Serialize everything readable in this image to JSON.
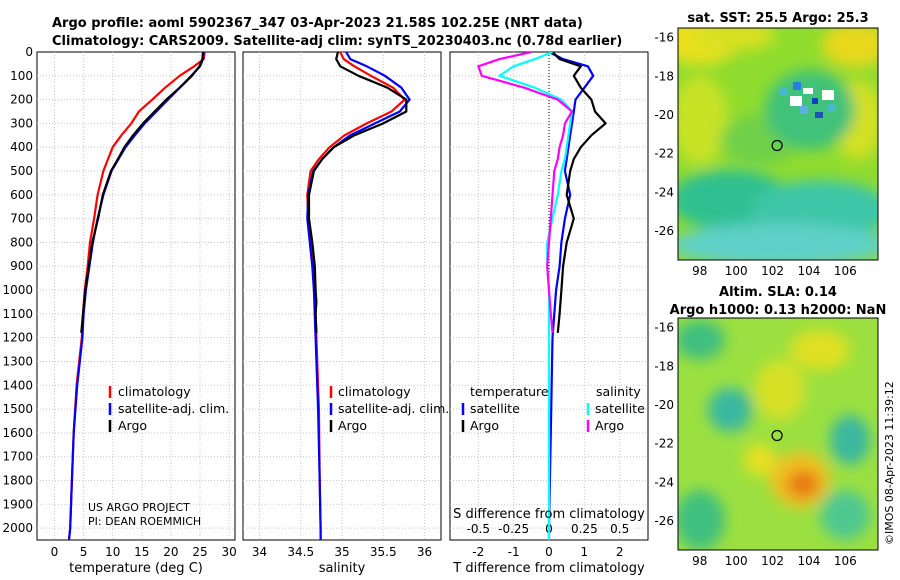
{
  "figure": {
    "title_line1": "Argo profile: aoml 5902367_347 03-Apr-2023 21.58S 102.25E (NRT data)",
    "title_line2": "Climatology: CARS2009. Satellite-adj clim: synTS_20230403.nc (0.78d earlier)",
    "credit_line1": "US ARGO PROJECT",
    "credit_line2": "PI: DEAN ROEMMICH",
    "timestamp": "©IMOS 08-Apr-2023 11:39:12"
  },
  "colors": {
    "climatology": "#ff0000",
    "satellite_adj": "#0000ff",
    "argo": "#000000",
    "salinity_satellite": "#00ffff",
    "salinity_argo": "#ff00ff"
  },
  "chart_data": [
    {
      "type": "line",
      "panel": "temperature",
      "xlabel": "temperature (deg C)",
      "xlim": [
        -3,
        31
      ],
      "xticks": [
        0,
        5,
        10,
        15,
        20,
        25,
        30
      ],
      "ylim": [
        2050,
        0
      ],
      "yticks": [
        0,
        100,
        200,
        300,
        400,
        500,
        600,
        700,
        800,
        900,
        1000,
        1100,
        1200,
        1300,
        1400,
        1500,
        1600,
        1700,
        1800,
        1900,
        2000
      ],
      "grid": true,
      "legend": [
        "climatology",
        "satellite-adj. clim.",
        "Argo"
      ],
      "series": [
        {
          "name": "climatology",
          "color": "#ff0000",
          "x": [
            25.8,
            25.6,
            24,
            21.5,
            19,
            16.8,
            14.5,
            13.2,
            11.5,
            10,
            9.2,
            8.4,
            7.4,
            6.8,
            6.1,
            5.7,
            5.2,
            4.9,
            4.7,
            3.8,
            3.3,
            3,
            2.7,
            2.5
          ],
          "y": [
            0,
            30,
            60,
            100,
            150,
            200,
            250,
            300,
            350,
            400,
            450,
            500,
            600,
            700,
            800,
            900,
            1000,
            1100,
            1200,
            1400,
            1600,
            1800,
            2000,
            2050
          ]
        },
        {
          "name": "satellite-adj. clim.",
          "color": "#0000ff",
          "x": [
            25.6,
            25.5,
            25,
            23.5,
            21.5,
            19.5,
            17.5,
            15.5,
            13.8,
            12.2,
            11,
            9.8,
            8.4,
            7.4,
            6.6,
            6,
            5.4,
            5,
            4.8,
            3.9,
            3.3,
            3,
            2.7,
            2.5
          ],
          "y": [
            0,
            30,
            60,
            100,
            150,
            200,
            250,
            300,
            350,
            400,
            450,
            500,
            600,
            700,
            800,
            900,
            1000,
            1100,
            1200,
            1400,
            1600,
            1800,
            2000,
            2050
          ]
        },
        {
          "name": "Argo",
          "color": "#000000",
          "x": [
            25.5,
            25.4,
            24.9,
            23.6,
            21.5,
            19.2,
            17.2,
            15.2,
            13.5,
            12,
            10.9,
            9.7,
            8.3,
            7.5,
            6.5,
            5.9,
            5.3,
            4.9,
            4.6
          ],
          "y": [
            0,
            30,
            60,
            100,
            150,
            200,
            250,
            300,
            350,
            400,
            450,
            500,
            600,
            700,
            800,
            900,
            1000,
            1100,
            1180
          ]
        }
      ]
    },
    {
      "type": "line",
      "panel": "salinity",
      "xlabel": "salinity",
      "xlim": [
        33.8,
        36.2
      ],
      "xticks": [
        34,
        34.5,
        35,
        35.5,
        36
      ],
      "xticklabels": [
        "34",
        "34.5",
        "35",
        "35.5",
        "36"
      ],
      "ylim": [
        2050,
        0
      ],
      "grid": true,
      "legend": [
        "climatology",
        "satellite-adj. clim.",
        "Argo"
      ],
      "series": [
        {
          "name": "climatology",
          "color": "#ff0000",
          "x": [
            34.98,
            35.02,
            35.15,
            35.35,
            35.62,
            35.76,
            35.6,
            35.3,
            35.03,
            34.85,
            34.72,
            34.62,
            34.58,
            34.59,
            34.62,
            34.65,
            34.67,
            34.69,
            34.72,
            34.73,
            34.74,
            34.74
          ],
          "y": [
            0,
            30,
            60,
            100,
            150,
            200,
            250,
            300,
            350,
            400,
            450,
            500,
            600,
            700,
            800,
            900,
            1000,
            1200,
            1500,
            1800,
            2000,
            2050
          ]
        },
        {
          "name": "satellite-adj. clim.",
          "color": "#0000ff",
          "x": [
            35.05,
            35.1,
            35.3,
            35.52,
            35.72,
            35.82,
            35.7,
            35.4,
            35.1,
            34.9,
            34.76,
            34.65,
            34.59,
            34.58,
            34.61,
            34.64,
            34.66,
            34.68,
            34.71,
            34.73,
            34.74,
            34.74
          ],
          "y": [
            0,
            30,
            60,
            100,
            150,
            200,
            250,
            300,
            350,
            400,
            450,
            500,
            600,
            700,
            800,
            900,
            1000,
            1200,
            1500,
            1800,
            2000,
            2050
          ]
        },
        {
          "name": "Argo",
          "color": "#000000",
          "x": [
            34.95,
            34.93,
            34.98,
            35.2,
            35.55,
            35.78,
            35.78,
            35.5,
            35.15,
            34.9,
            34.76,
            34.66,
            34.6,
            34.6,
            34.64,
            34.67,
            34.68,
            34.69,
            34.68,
            34.69
          ],
          "y": [
            0,
            30,
            60,
            100,
            150,
            200,
            250,
            300,
            350,
            400,
            450,
            500,
            600,
            700,
            800,
            900,
            1000,
            1050,
            1100,
            1180
          ]
        }
      ]
    },
    {
      "type": "line",
      "panel": "difference",
      "xlabel": "T difference from climatology",
      "xlabel_top": "S difference from climatology",
      "xlim": [
        -2.8,
        2.8
      ],
      "xticks": [
        -2,
        -1,
        0,
        1,
        2
      ],
      "xticks_top": [
        -0.5,
        -0.25,
        0,
        0.25,
        0.5
      ],
      "xticklabels_top": [
        "-0.5",
        "-0.25",
        "0",
        "0.25",
        "0.5"
      ],
      "ylim": [
        2050,
        0
      ],
      "grid": true,
      "legend_temperature": {
        "title": "temperature",
        "items": [
          "satellite",
          "Argo"
        ]
      },
      "legend_salinity": {
        "title": "salinity",
        "items": [
          "satellite",
          "Argo"
        ]
      },
      "series": [
        {
          "name": "T satellite",
          "color": "#0000ff",
          "x": [
            0,
            0.4,
            1.1,
            1.25,
            1.0,
            0.75,
            0.7,
            0.65,
            0.6,
            0.55,
            0.5,
            0.45,
            0.6,
            0.45,
            0.35,
            0.3,
            0.2,
            0.15,
            0.1,
            0.05,
            0,
            0
          ],
          "y": [
            0,
            30,
            60,
            100,
            150,
            200,
            250,
            300,
            350,
            400,
            450,
            500,
            600,
            700,
            800,
            900,
            1000,
            1100,
            1200,
            1600,
            2000,
            2050
          ]
        },
        {
          "name": "T Argo",
          "color": "#000000",
          "x": [
            0.1,
            0.3,
            0.9,
            0.7,
            0.9,
            1.2,
            1.3,
            1.6,
            1.2,
            0.9,
            0.7,
            0.6,
            0.5,
            0.7,
            0.5,
            0.4,
            0.35,
            0.3,
            0.25
          ],
          "y": [
            0,
            30,
            60,
            100,
            150,
            200,
            250,
            300,
            350,
            400,
            450,
            500,
            600,
            700,
            800,
            900,
            1000,
            1100,
            1180
          ]
        },
        {
          "name": "S satellite",
          "color": "#00ffff",
          "x": [
            0.1,
            -0.4,
            -1.0,
            -1.4,
            -0.4,
            0.35,
            0.65,
            0.6,
            0.55,
            0.5,
            0.45,
            0.35,
            0.25,
            0.1,
            -0.05,
            -0.05,
            0,
            0,
            0
          ],
          "y": [
            0,
            30,
            60,
            100,
            150,
            200,
            250,
            300,
            350,
            400,
            450,
            500,
            600,
            700,
            800,
            900,
            1000,
            1200,
            2050
          ]
        },
        {
          "name": "S Argo",
          "color": "#ff00ff",
          "x": [
            -0.5,
            -1.4,
            -2.0,
            -1.9,
            -0.7,
            0.25,
            0.65,
            0.45,
            0.4,
            0.3,
            0.25,
            0.15,
            0.1,
            0.05,
            0.0,
            -0.05,
            0.0,
            0.05,
            0.1
          ],
          "y": [
            0,
            30,
            60,
            100,
            150,
            200,
            250,
            300,
            350,
            400,
            450,
            500,
            600,
            700,
            800,
            900,
            1000,
            1100,
            1180
          ]
        }
      ]
    },
    {
      "type": "heatmap",
      "panel": "sat_sst_map",
      "title": "sat. SST: 25.5 Argo: 25.3",
      "xlim": [
        96.8,
        107.8
      ],
      "ylim": [
        -27.5,
        -15.5
      ],
      "xticks": [
        98,
        100,
        102,
        104,
        106
      ],
      "yticks": [
        -16,
        -18,
        -20,
        -22,
        -24,
        -26
      ],
      "marker": {
        "lon": 102.25,
        "lat": -21.58
      }
    },
    {
      "type": "heatmap",
      "panel": "altimetry_map",
      "title_line1": "Altim. SLA: 0.14",
      "title_line2": "Argo h1000: 0.13 h2000: NaN",
      "xlim": [
        96.8,
        107.8
      ],
      "ylim": [
        -27.5,
        -15.5
      ],
      "xticks": [
        98,
        100,
        102,
        104,
        106
      ],
      "yticks": [
        -16,
        -18,
        -20,
        -22,
        -24,
        -26
      ],
      "marker": {
        "lon": 102.25,
        "lat": -21.58
      }
    }
  ]
}
